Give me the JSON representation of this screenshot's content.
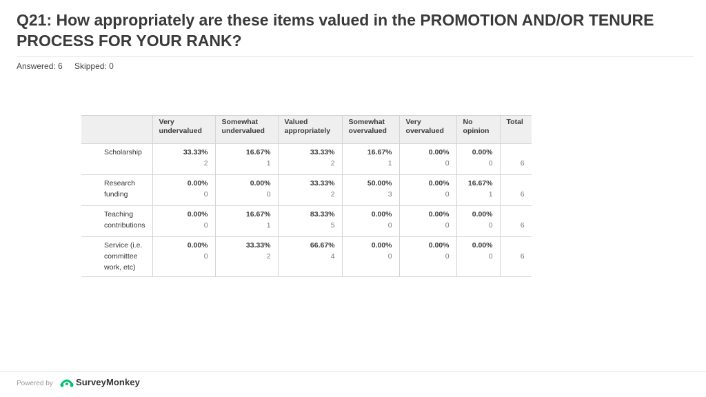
{
  "question": {
    "title": "Q21: How appropriately are these items valued in the PROMOTION AND/OR TENURE PROCESS FOR YOUR RANK?",
    "answered": "Answered: 6",
    "skipped": "Skipped: 0"
  },
  "table": {
    "headers": [
      "",
      "Very undervalued",
      "Somewhat undervalued",
      "Valued appropriately",
      "Somewhat overvalued",
      "Very overvalued",
      "No opinion",
      "Total"
    ],
    "rows": [
      {
        "label": "Scholarship",
        "cells": [
          {
            "pct": "33.33%",
            "count": "2"
          },
          {
            "pct": "16.67%",
            "count": "1"
          },
          {
            "pct": "33.33%",
            "count": "2"
          },
          {
            "pct": "16.67%",
            "count": "1"
          },
          {
            "pct": "0.00%",
            "count": "0"
          },
          {
            "pct": "0.00%",
            "count": "0"
          }
        ],
        "total": "6"
      },
      {
        "label": "Research funding",
        "cells": [
          {
            "pct": "0.00%",
            "count": "0"
          },
          {
            "pct": "0.00%",
            "count": "0"
          },
          {
            "pct": "33.33%",
            "count": "2"
          },
          {
            "pct": "50.00%",
            "count": "3"
          },
          {
            "pct": "0.00%",
            "count": "0"
          },
          {
            "pct": "16.67%",
            "count": "1"
          }
        ],
        "total": "6"
      },
      {
        "label": "Teaching contributions",
        "cells": [
          {
            "pct": "0.00%",
            "count": "0"
          },
          {
            "pct": "16.67%",
            "count": "1"
          },
          {
            "pct": "83.33%",
            "count": "5"
          },
          {
            "pct": "0.00%",
            "count": "0"
          },
          {
            "pct": "0.00%",
            "count": "0"
          },
          {
            "pct": "0.00%",
            "count": "0"
          }
        ],
        "total": "6"
      },
      {
        "label": "Service (i.e. committee work, etc)",
        "cells": [
          {
            "pct": "0.00%",
            "count": "0"
          },
          {
            "pct": "33.33%",
            "count": "2"
          },
          {
            "pct": "66.67%",
            "count": "4"
          },
          {
            "pct": "0.00%",
            "count": "0"
          },
          {
            "pct": "0.00%",
            "count": "0"
          },
          {
            "pct": "0.00%",
            "count": "0"
          }
        ],
        "total": "6"
      }
    ]
  },
  "footer": {
    "powered_by": "Powered by",
    "brand": "SurveyMonkey",
    "brand_icon": "surveymonkey-logo-icon",
    "brand_color": "#00bf6f"
  }
}
